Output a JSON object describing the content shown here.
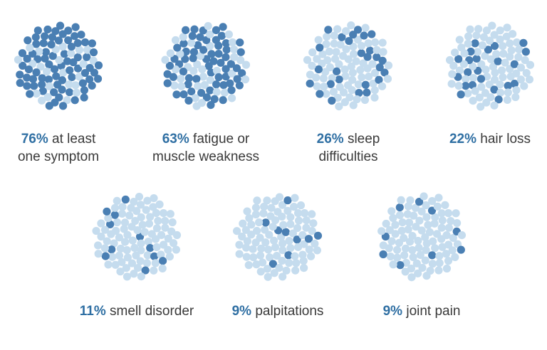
{
  "colors": {
    "highlight_dot": "#4a7fb3",
    "base_dot": "#c5dcee",
    "percent_text": "#2f6fa3",
    "caption_text": "#3a3a3a"
  },
  "chart_data": {
    "type": "waffle",
    "dots_per_cluster": 100,
    "items": [
      {
        "percent": 76,
        "percent_label": "76%",
        "label_line1": "at least",
        "label_line2": "one symptom"
      },
      {
        "percent": 63,
        "percent_label": "63%",
        "label_line1": "fatigue or",
        "label_line2": "muscle weakness"
      },
      {
        "percent": 26,
        "percent_label": "26%",
        "label_line1": "sleep",
        "label_line2": "difficulties"
      },
      {
        "percent": 22,
        "percent_label": "22%",
        "label_line1": "hair loss",
        "label_line2": ""
      },
      {
        "percent": 11,
        "percent_label": "11%",
        "label_line1": "smell disorder",
        "label_line2": ""
      },
      {
        "percent": 9,
        "percent_label": "9%",
        "label_line1": "palpitations",
        "label_line2": ""
      },
      {
        "percent": 9,
        "percent_label": "9%",
        "label_line1": "joint pain",
        "label_line2": ""
      }
    ]
  }
}
